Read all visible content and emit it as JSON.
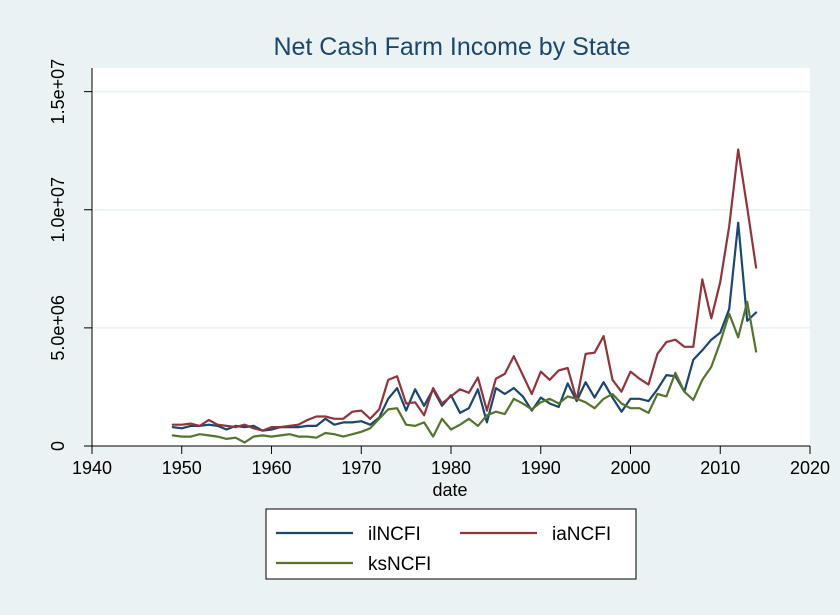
{
  "chart_data": {
    "type": "line",
    "title": "Net Cash Farm Income by State",
    "xlabel": "date",
    "ylabel": "",
    "xlim": [
      1940,
      2020
    ],
    "ylim": [
      0,
      15000000
    ],
    "xticks": [
      1940,
      1950,
      1960,
      1970,
      1980,
      1990,
      2000,
      2010,
      2020
    ],
    "xtick_labels": [
      "1940",
      "1950",
      "1960",
      "1970",
      "1980",
      "1990",
      "2000",
      "2010",
      "2020"
    ],
    "yticks": [
      0,
      5000000,
      10000000,
      15000000
    ],
    "ytick_labels": [
      "0",
      "5.0e+06",
      "1.0e+07",
      "1.5e+07"
    ],
    "grid": "horizontal",
    "legend_position": "bottom",
    "colors": {
      "background": "#eaf2f3",
      "plot_background": "#ffffff",
      "grid": "#eaf2f3",
      "title": "#1a476f"
    },
    "x": [
      1949,
      1950,
      1951,
      1952,
      1953,
      1954,
      1955,
      1956,
      1957,
      1958,
      1959,
      1960,
      1961,
      1962,
      1963,
      1964,
      1965,
      1966,
      1967,
      1968,
      1969,
      1970,
      1971,
      1972,
      1973,
      1974,
      1975,
      1976,
      1977,
      1978,
      1979,
      1980,
      1981,
      1982,
      1983,
      1984,
      1985,
      1986,
      1987,
      1988,
      1989,
      1990,
      1991,
      1992,
      1993,
      1994,
      1995,
      1996,
      1997,
      1998,
      1999,
      2000,
      2001,
      2002,
      2003,
      2004,
      2005,
      2006,
      2007,
      2008,
      2009,
      2010,
      2011,
      2012,
      2013,
      2014
    ],
    "series": [
      {
        "name": "ilNCFI",
        "color": "#1a476f",
        "values": [
          800000,
          750000,
          850000,
          850000,
          900000,
          850000,
          700000,
          850000,
          800000,
          850000,
          650000,
          700000,
          800000,
          800000,
          800000,
          850000,
          850000,
          1150000,
          900000,
          1000000,
          1000000,
          1050000,
          900000,
          1200000,
          2000000,
          2450000,
          1500000,
          2400000,
          1700000,
          2400000,
          1700000,
          2150000,
          1400000,
          1600000,
          2400000,
          1000000,
          2450000,
          2200000,
          2450000,
          2100000,
          1500000,
          2050000,
          1800000,
          1650000,
          2650000,
          1900000,
          2700000,
          2050000,
          2700000,
          2050000,
          1450000,
          2000000,
          2000000,
          1900000,
          2400000,
          3000000,
          2950000,
          2300000,
          3650000,
          4050000,
          4500000,
          4800000,
          5800000,
          9450000,
          5300000,
          5650000
        ]
      },
      {
        "name": "iaNCFI",
        "color": "#90353b",
        "values": [
          900000,
          900000,
          950000,
          850000,
          1100000,
          900000,
          850000,
          800000,
          900000,
          750000,
          650000,
          800000,
          800000,
          850000,
          900000,
          1100000,
          1250000,
          1250000,
          1150000,
          1150000,
          1450000,
          1500000,
          1150000,
          1550000,
          2800000,
          2950000,
          1800000,
          1850000,
          1300000,
          2450000,
          1800000,
          2100000,
          2400000,
          2250000,
          2900000,
          1500000,
          2850000,
          3050000,
          3800000,
          3000000,
          2200000,
          3150000,
          2800000,
          3200000,
          3300000,
          1950000,
          3900000,
          3950000,
          4650000,
          2800000,
          2300000,
          3150000,
          2850000,
          2600000,
          3900000,
          4400000,
          4500000,
          4200000,
          4200000,
          7050000,
          5400000,
          6950000,
          9300000,
          12550000,
          10100000,
          7550000
        ]
      },
      {
        "name": "ksNCFI",
        "color": "#55752f",
        "values": [
          450000,
          400000,
          400000,
          500000,
          450000,
          400000,
          300000,
          350000,
          150000,
          400000,
          450000,
          400000,
          450000,
          500000,
          400000,
          400000,
          350000,
          550000,
          500000,
          400000,
          500000,
          600000,
          750000,
          1150000,
          1550000,
          1600000,
          900000,
          850000,
          1000000,
          400000,
          1150000,
          700000,
          900000,
          1150000,
          850000,
          1300000,
          1450000,
          1350000,
          2000000,
          1800000,
          1550000,
          1850000,
          2000000,
          1800000,
          2100000,
          2000000,
          1850000,
          1600000,
          2000000,
          2200000,
          1800000,
          1600000,
          1600000,
          1400000,
          2200000,
          2100000,
          3100000,
          2300000,
          1950000,
          2800000,
          3350000,
          4400000,
          5600000,
          4600000,
          6100000,
          4000000
        ]
      }
    ]
  }
}
